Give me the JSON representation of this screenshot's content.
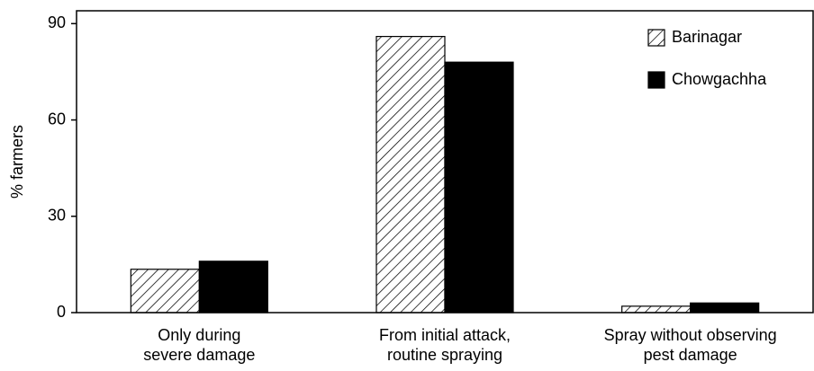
{
  "chart_data": {
    "type": "bar",
    "y_label": "% farmers",
    "categories": [
      "Only during\nsevere damage",
      "From initial attack,\nroutine spraying",
      "Spray without observing\npest damage"
    ],
    "series": [
      {
        "name": "Barinagar",
        "color": "#000000",
        "pattern": "hatch",
        "values": [
          13.5,
          86,
          2
        ]
      },
      {
        "name": "Chowgachha",
        "color": "#000000",
        "pattern": "solid",
        "values": [
          16,
          78,
          3
        ]
      }
    ],
    "ylim": [
      0,
      94
    ],
    "yticks": [
      0,
      30,
      60,
      90
    ],
    "grid": false,
    "legend": "top-right"
  }
}
